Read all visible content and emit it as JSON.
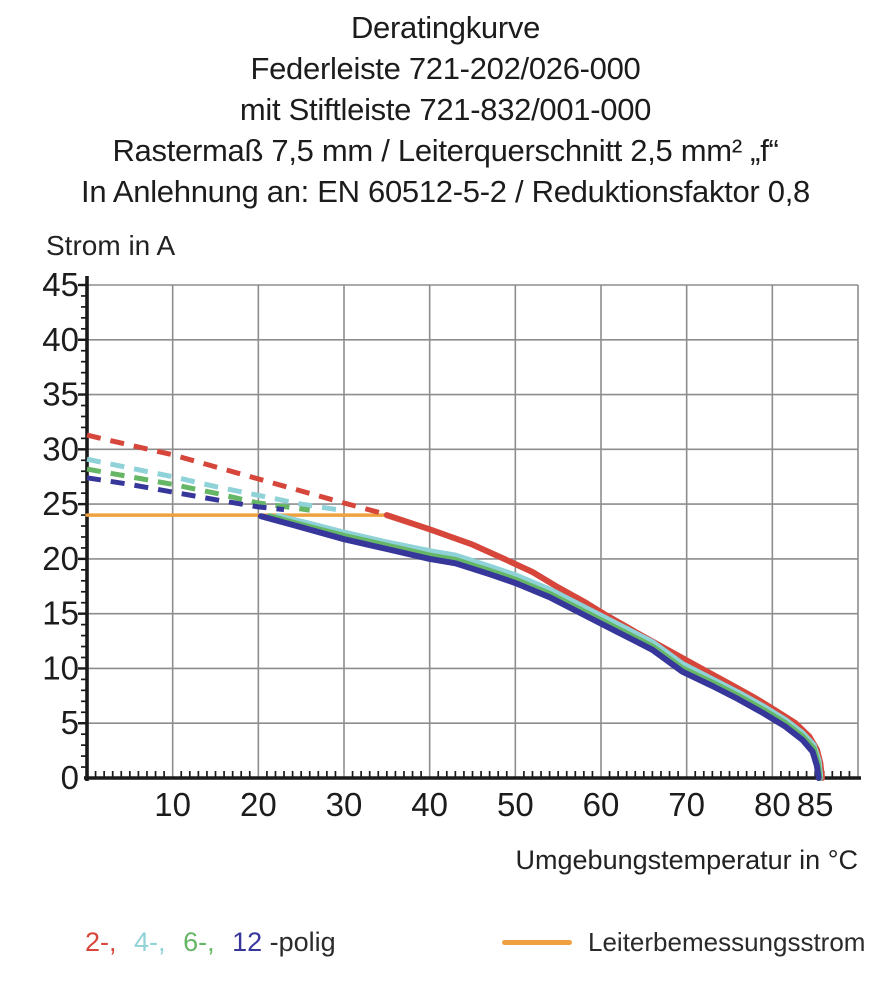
{
  "title": {
    "lines": [
      "Deratingkurve",
      "Federleiste 721-202/026-000",
      "mit Stiftleiste 721-832/001-000",
      "Rastermaß 7,5 mm / Leiterquerschnitt 2,5 mm² „f“",
      "In Anlehnung an: EN 60512-5-2 / Reduktionsfaktor 0,8"
    ]
  },
  "legend": {
    "pole_items": [
      {
        "text": "2-,",
        "color": "#d6463b"
      },
      {
        "text": "4-,",
        "color": "#8fd2d8"
      },
      {
        "text": "6-,",
        "color": "#65b665"
      },
      {
        "text": "12",
        "color": "#37379b"
      },
      {
        "text": "-polig",
        "color": "#2b2b2b"
      }
    ],
    "rated_current_label": "Leiterbemessungsstrom",
    "rated_current_color": "#efa040"
  },
  "chart_data": {
    "type": "line",
    "title": "Deratingkurve",
    "x_axis": {
      "label": "Umgebungstemperatur in °C",
      "range": [
        0,
        90
      ],
      "tick_labels": [
        10,
        20,
        30,
        40,
        50,
        60,
        70,
        80,
        85
      ],
      "gridline_step": 10,
      "minor_tick_step": 1
    },
    "y_axis": {
      "label": "Strom in A",
      "range": [
        0,
        45
      ],
      "tick_labels": [
        0,
        5,
        10,
        15,
        20,
        25,
        30,
        35,
        40,
        45
      ],
      "gridline_step": 5,
      "minor_tick_step": 1
    },
    "grid_on": true,
    "grid_color": "#8d8d8d",
    "axis_color": "#1a1a1a",
    "tick_label_color": "#1c1c1c",
    "series": [
      {
        "name": "Leiterbemessungsstrom",
        "style": "solid",
        "width": 3.5,
        "color": "#efa040",
        "points": [
          [
            0,
            24
          ],
          [
            35,
            24
          ]
        ]
      },
      {
        "name": "2-polig",
        "style": "dashed",
        "width": 5,
        "color": "#d6463b",
        "points": [
          [
            0,
            31.3
          ],
          [
            5,
            30.4
          ],
          [
            10,
            29.5
          ],
          [
            15,
            28.4
          ],
          [
            20,
            27.3
          ],
          [
            25,
            26.2
          ],
          [
            30,
            25.1
          ],
          [
            35,
            24.05
          ]
        ]
      },
      {
        "name": "4-polig",
        "style": "dashed",
        "width": 5,
        "color": "#8fd2d8",
        "points": [
          [
            0,
            29.1
          ],
          [
            5,
            28.3
          ],
          [
            10,
            27.5
          ],
          [
            15,
            26.6
          ],
          [
            20,
            25.8
          ],
          [
            25,
            25.0
          ],
          [
            30,
            24.4
          ]
        ]
      },
      {
        "name": "6-polig",
        "style": "dashed",
        "width": 5,
        "color": "#65b665",
        "points": [
          [
            0,
            28.2
          ],
          [
            5,
            27.5
          ],
          [
            10,
            26.8
          ],
          [
            15,
            26.0
          ],
          [
            20,
            25.1
          ],
          [
            26,
            24.45
          ]
        ]
      },
      {
        "name": "12-polig",
        "style": "dashed",
        "width": 5,
        "color": "#37379b",
        "points": [
          [
            0,
            27.4
          ],
          [
            5,
            26.8
          ],
          [
            10,
            26.1
          ],
          [
            15,
            25.4
          ],
          [
            20,
            24.75
          ],
          [
            23,
            24.5
          ]
        ]
      },
      {
        "name": "2-polig",
        "style": "solid",
        "width": 6,
        "color": "#d6463b",
        "points": [
          [
            35,
            24.0
          ],
          [
            40,
            22.7
          ],
          [
            45,
            21.3
          ],
          [
            48.7,
            20.0
          ],
          [
            52,
            18.8
          ],
          [
            55,
            17.4
          ],
          [
            58,
            16.1
          ],
          [
            60.3,
            15.0
          ],
          [
            65,
            12.9
          ],
          [
            68,
            11.6
          ],
          [
            71.7,
            10.0
          ],
          [
            75,
            8.6
          ],
          [
            78,
            7.3
          ],
          [
            80.5,
            6.1
          ],
          [
            82.7,
            5.0
          ],
          [
            84.3,
            3.8
          ],
          [
            85.2,
            2.6
          ],
          [
            85.6,
            1.4
          ],
          [
            85.8,
            0
          ]
        ]
      },
      {
        "name": "4-polig",
        "style": "solid",
        "width": 6,
        "color": "#8fd2d8",
        "points": [
          [
            22.3,
            23.9
          ],
          [
            26,
            23.2
          ],
          [
            30,
            22.4
          ],
          [
            35,
            21.5
          ],
          [
            40,
            20.7
          ],
          [
            43,
            20.3
          ],
          [
            47,
            19.3
          ],
          [
            50,
            18.5
          ],
          [
            54,
            17.2
          ],
          [
            58.5,
            15.4
          ],
          [
            62,
            14.0
          ],
          [
            66,
            12.4
          ],
          [
            69.5,
            10.4
          ],
          [
            73,
            9.0
          ],
          [
            76,
            7.8
          ],
          [
            79,
            6.5
          ],
          [
            81.5,
            5.3
          ],
          [
            83.5,
            4.1
          ],
          [
            84.8,
            3.0
          ],
          [
            85.4,
            1.6
          ],
          [
            85.6,
            0
          ]
        ]
      },
      {
        "name": "6-polig",
        "style": "solid",
        "width": 6,
        "color": "#65b665",
        "points": [
          [
            21.3,
            23.9
          ],
          [
            25,
            23.1
          ],
          [
            30,
            22.1
          ],
          [
            35,
            21.2
          ],
          [
            40,
            20.3
          ],
          [
            43,
            19.9
          ],
          [
            47,
            18.9
          ],
          [
            50,
            18.1
          ],
          [
            54,
            16.8
          ],
          [
            58.5,
            15.0
          ],
          [
            62,
            13.6
          ],
          [
            66,
            12.0
          ],
          [
            69.5,
            10.0
          ],
          [
            73,
            8.7
          ],
          [
            76,
            7.5
          ],
          [
            79,
            6.2
          ],
          [
            81.5,
            5.0
          ],
          [
            83.5,
            3.8
          ],
          [
            84.8,
            2.7
          ],
          [
            85.3,
            1.4
          ],
          [
            85.5,
            0
          ]
        ]
      },
      {
        "name": "12-polig",
        "style": "solid",
        "width": 6,
        "color": "#37379b",
        "points": [
          [
            20.3,
            23.9
          ],
          [
            24,
            23.1
          ],
          [
            30,
            21.8
          ],
          [
            35,
            20.9
          ],
          [
            40,
            20.0
          ],
          [
            43,
            19.6
          ],
          [
            47,
            18.6
          ],
          [
            50,
            17.8
          ],
          [
            54,
            16.5
          ],
          [
            58.5,
            14.7
          ],
          [
            62,
            13.3
          ],
          [
            66,
            11.7
          ],
          [
            69.5,
            9.7
          ],
          [
            73,
            8.4
          ],
          [
            76,
            7.2
          ],
          [
            79,
            5.9
          ],
          [
            81.5,
            4.7
          ],
          [
            83.5,
            3.5
          ],
          [
            84.7,
            2.4
          ],
          [
            85.2,
            1.1
          ],
          [
            85.4,
            0
          ]
        ]
      }
    ]
  }
}
